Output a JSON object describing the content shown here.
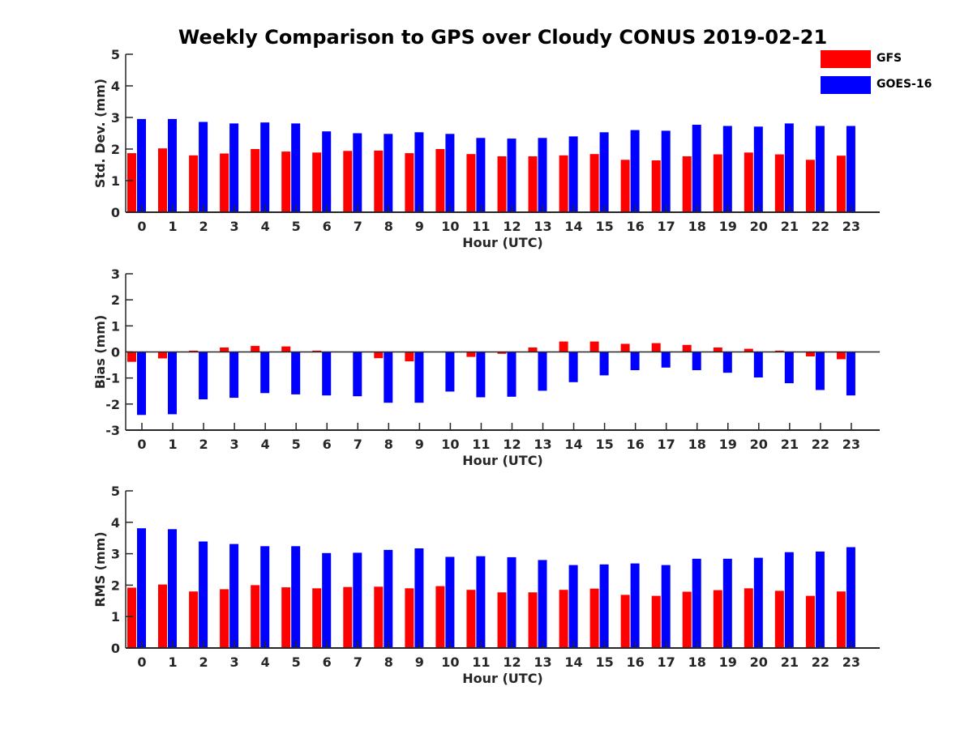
{
  "figure_title": "Weekly Comparison to GPS over Cloudy CONUS 2019-02-21",
  "legend": [
    {
      "label": "GFS",
      "color": "#ff0000"
    },
    {
      "label": "GOES-16",
      "color": "#0000ff"
    }
  ],
  "colors": {
    "axis": "#262626",
    "gfs": "#ff0000",
    "goes": "#0000ff"
  },
  "chart_data": [
    {
      "type": "bar",
      "title": "Weekly Comparison to GPS over Cloudy CONUS 2019-02-21",
      "xlabel": "Hour (UTC)",
      "ylabel": "Std. Dev. (mm)",
      "ylim": [
        0,
        5
      ],
      "yticks": [
        0,
        1,
        2,
        3,
        4,
        5
      ],
      "categories": [
        "0",
        "1",
        "2",
        "3",
        "4",
        "5",
        "6",
        "7",
        "8",
        "9",
        "10",
        "11",
        "12",
        "13",
        "14",
        "15",
        "16",
        "17",
        "18",
        "19",
        "20",
        "21",
        "22",
        "23"
      ],
      "series": [
        {
          "name": "GFS",
          "values": [
            1.87,
            2.02,
            1.8,
            1.86,
            2.0,
            1.92,
            1.89,
            1.94,
            1.95,
            1.87,
            2.0,
            1.84,
            1.77,
            1.77,
            1.8,
            1.84,
            1.66,
            1.64,
            1.77,
            1.83,
            1.89,
            1.83,
            1.66,
            1.79
          ]
        },
        {
          "name": "GOES-16",
          "values": [
            2.95,
            2.95,
            2.86,
            2.81,
            2.84,
            2.81,
            2.56,
            2.5,
            2.48,
            2.53,
            2.48,
            2.35,
            2.33,
            2.35,
            2.4,
            2.53,
            2.6,
            2.58,
            2.77,
            2.73,
            2.71,
            2.81,
            2.73,
            2.73
          ]
        }
      ]
    },
    {
      "type": "bar",
      "xlabel": "Hour (UTC)",
      "ylabel": "Bias (mm)",
      "ylim": [
        -3,
        3
      ],
      "yticks": [
        -3,
        -2,
        -1,
        0,
        1,
        2,
        3
      ],
      "categories": [
        "0",
        "1",
        "2",
        "3",
        "4",
        "5",
        "6",
        "7",
        "8",
        "9",
        "10",
        "11",
        "12",
        "13",
        "14",
        "15",
        "16",
        "17",
        "18",
        "19",
        "20",
        "21",
        "22",
        "23"
      ],
      "series": [
        {
          "name": "GFS",
          "values": [
            -0.38,
            -0.25,
            0.05,
            0.17,
            0.23,
            0.21,
            0.05,
            0.0,
            -0.24,
            -0.36,
            0.0,
            -0.19,
            -0.07,
            0.17,
            0.4,
            0.4,
            0.31,
            0.34,
            0.27,
            0.17,
            0.12,
            0.05,
            -0.17,
            -0.28
          ]
        },
        {
          "name": "GOES-16",
          "values": [
            -2.42,
            -2.39,
            -1.82,
            -1.76,
            -1.58,
            -1.63,
            -1.67,
            -1.7,
            -1.95,
            -1.95,
            -1.52,
            -1.74,
            -1.72,
            -1.49,
            -1.16,
            -0.9,
            -0.7,
            -0.6,
            -0.7,
            -0.8,
            -0.98,
            -1.2,
            -1.46,
            -1.67
          ]
        }
      ]
    },
    {
      "type": "bar",
      "xlabel": "Hour (UTC)",
      "ylabel": "RMS (mm)",
      "ylim": [
        0,
        5
      ],
      "yticks": [
        0,
        1,
        2,
        3,
        4,
        5
      ],
      "categories": [
        "0",
        "1",
        "2",
        "3",
        "4",
        "5",
        "6",
        "7",
        "8",
        "9",
        "10",
        "11",
        "12",
        "13",
        "14",
        "15",
        "16",
        "17",
        "18",
        "19",
        "20",
        "21",
        "22",
        "23"
      ],
      "series": [
        {
          "name": "GFS",
          "values": [
            1.92,
            2.02,
            1.8,
            1.87,
            2.0,
            1.93,
            1.9,
            1.94,
            1.95,
            1.9,
            1.97,
            1.85,
            1.77,
            1.77,
            1.85,
            1.89,
            1.69,
            1.66,
            1.79,
            1.84,
            1.9,
            1.82,
            1.66,
            1.8
          ]
        },
        {
          "name": "GOES-16",
          "values": [
            3.81,
            3.78,
            3.39,
            3.31,
            3.24,
            3.24,
            3.02,
            3.03,
            3.12,
            3.17,
            2.9,
            2.92,
            2.89,
            2.8,
            2.64,
            2.66,
            2.69,
            2.64,
            2.84,
            2.84,
            2.87,
            3.05,
            3.07,
            3.21
          ]
        }
      ]
    }
  ]
}
